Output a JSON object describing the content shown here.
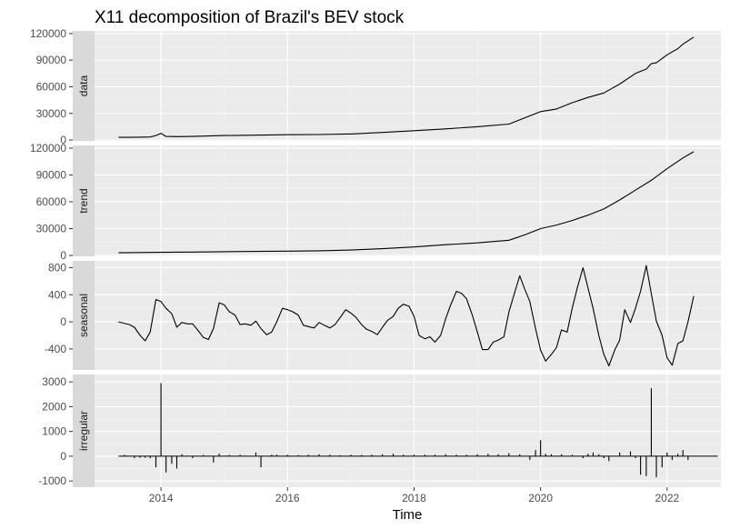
{
  "chart_data": {
    "type": "line",
    "title": "X11 decomposition of Brazil's BEV stock",
    "xlabel": "Time",
    "xlim": [
      2012.95,
      2022.85
    ],
    "x_ticks": [
      2014,
      2016,
      2018,
      2020,
      2022
    ],
    "x_tick_labels": [
      "2014",
      "2016",
      "2018",
      "2020",
      "2022"
    ],
    "grid": true,
    "panel_background": "#ebebeb",
    "strip_background": "#d9d9d9",
    "line_color": "#000000",
    "series": [
      {
        "name": "data",
        "type": "line",
        "ylim": [
          -1000,
          123000
        ],
        "y_ticks": [
          0,
          30000,
          60000,
          90000,
          120000
        ],
        "y_tick_labels": [
          "0",
          "30000",
          "60000",
          "90000",
          "120000"
        ],
        "x": [
          2013.33,
          2013.5,
          2013.67,
          2013.83,
          2013.92,
          2014.0,
          2014.08,
          2014.25,
          2014.5,
          2015.0,
          2015.5,
          2016.0,
          2016.5,
          2017.0,
          2017.5,
          2018.0,
          2018.5,
          2019.0,
          2019.5,
          2019.75,
          2020.0,
          2020.25,
          2020.5,
          2020.75,
          2021.0,
          2021.25,
          2021.5,
          2021.67,
          2021.75,
          2021.83,
          2022.0,
          2022.17,
          2022.25,
          2022.42
        ],
        "y": [
          3000,
          3000,
          3200,
          3400,
          5000,
          7500,
          4000,
          3800,
          4000,
          5000,
          5500,
          6000,
          6200,
          6800,
          8500,
          10500,
          12500,
          15000,
          18000,
          25000,
          32000,
          35000,
          42000,
          48000,
          53000,
          63000,
          75000,
          80000,
          86000,
          87000,
          96000,
          103000,
          108000,
          116000
        ]
      },
      {
        "name": "trend",
        "type": "line",
        "ylim": [
          -1000,
          123000
        ],
        "y_ticks": [
          0,
          30000,
          60000,
          90000,
          120000
        ],
        "y_tick_labels": [
          "0",
          "30000",
          "60000",
          "90000",
          "120000"
        ],
        "x": [
          2013.33,
          2014.0,
          2014.5,
          2015.0,
          2015.5,
          2016.0,
          2016.5,
          2017.0,
          2017.5,
          2018.0,
          2018.5,
          2019.0,
          2019.5,
          2019.75,
          2020.0,
          2020.25,
          2020.5,
          2020.75,
          2021.0,
          2021.25,
          2021.5,
          2021.75,
          2022.0,
          2022.25,
          2022.42
        ],
        "y": [
          3000,
          3500,
          3800,
          4200,
          4500,
          4800,
          5200,
          6000,
          7500,
          9500,
          12000,
          14000,
          17000,
          23000,
          30000,
          34000,
          39000,
          45000,
          52000,
          62000,
          73000,
          84000,
          97000,
          109000,
          116000
        ]
      },
      {
        "name": "seasonal",
        "type": "line",
        "ylim": [
          -710,
          900
        ],
        "y_ticks": [
          -400,
          0,
          400,
          800
        ],
        "y_tick_labels": [
          "-400",
          "0",
          "400",
          "800"
        ],
        "x": [
          2013.33,
          2013.5,
          2013.58,
          2013.67,
          2013.75,
          2013.83,
          2013.92,
          2014.0,
          2014.08,
          2014.17,
          2014.25,
          2014.33,
          2014.42,
          2014.5,
          2014.58,
          2014.67,
          2014.75,
          2014.83,
          2014.92,
          2015.0,
          2015.08,
          2015.17,
          2015.25,
          2015.33,
          2015.42,
          2015.5,
          2015.58,
          2015.67,
          2015.75,
          2015.83,
          2015.92,
          2016.0,
          2016.08,
          2016.17,
          2016.25,
          2016.33,
          2016.42,
          2016.5,
          2016.58,
          2016.67,
          2016.75,
          2016.83,
          2016.92,
          2017.0,
          2017.08,
          2017.17,
          2017.25,
          2017.33,
          2017.42,
          2017.5,
          2017.58,
          2017.67,
          2017.75,
          2017.83,
          2017.92,
          2018.0,
          2018.08,
          2018.17,
          2018.25,
          2018.33,
          2018.42,
          2018.5,
          2018.58,
          2018.67,
          2018.75,
          2018.83,
          2018.92,
          2019.0,
          2019.08,
          2019.17,
          2019.25,
          2019.33,
          2019.42,
          2019.5,
          2019.58,
          2019.67,
          2019.75,
          2019.83,
          2019.92,
          2020.0,
          2020.08,
          2020.17,
          2020.25,
          2020.33,
          2020.42,
          2020.5,
          2020.58,
          2020.67,
          2020.75,
          2020.83,
          2020.92,
          2021.0,
          2021.08,
          2021.17,
          2021.25,
          2021.33,
          2021.42,
          2021.5,
          2021.58,
          2021.67,
          2021.75,
          2021.83,
          2021.92,
          2022.0,
          2022.08,
          2022.17,
          2022.25,
          2022.33,
          2022.42
        ],
        "y": [
          0,
          -40,
          -80,
          -200,
          -280,
          -150,
          330,
          300,
          200,
          120,
          -80,
          -10,
          -30,
          -30,
          -120,
          -230,
          -260,
          -100,
          280,
          250,
          150,
          100,
          -40,
          -30,
          -50,
          10,
          -100,
          -190,
          -150,
          0,
          200,
          180,
          150,
          100,
          -50,
          -70,
          -90,
          -10,
          -50,
          -90,
          -40,
          60,
          180,
          130,
          70,
          -40,
          -110,
          -140,
          -190,
          -80,
          20,
          80,
          200,
          260,
          230,
          80,
          -200,
          -250,
          -220,
          -300,
          -200,
          50,
          250,
          450,
          420,
          340,
          100,
          -150,
          -410,
          -410,
          -300,
          -270,
          -220,
          150,
          400,
          680,
          480,
          300,
          -100,
          -420,
          -580,
          -480,
          -380,
          -120,
          -150,
          200,
          500,
          800,
          500,
          200,
          -200,
          -480,
          -650,
          -420,
          -270,
          180,
          -10,
          200,
          450,
          830,
          420,
          10,
          -200,
          -530,
          -640,
          -320,
          -280,
          0,
          380
        ]
      },
      {
        "name": "irregular",
        "type": "bar",
        "ylim": [
          -1250,
          3300
        ],
        "y_ticks": [
          -1000,
          0,
          1000,
          2000,
          3000
        ],
        "y_tick_labels": [
          "-1000",
          "0",
          "1000",
          "2000",
          "3000"
        ],
        "x": [
          2013.42,
          2013.58,
          2013.67,
          2013.75,
          2013.83,
          2013.92,
          2014.0,
          2014.08,
          2014.17,
          2014.25,
          2014.33,
          2014.5,
          2014.67,
          2014.83,
          2014.92,
          2015.08,
          2015.25,
          2015.5,
          2015.58,
          2015.75,
          2015.83,
          2016.0,
          2016.17,
          2016.33,
          2016.5,
          2016.67,
          2016.83,
          2017.0,
          2017.17,
          2017.33,
          2017.5,
          2017.67,
          2017.83,
          2018.0,
          2018.17,
          2018.33,
          2018.5,
          2018.67,
          2018.83,
          2019.0,
          2019.17,
          2019.33,
          2019.5,
          2019.67,
          2019.83,
          2019.92,
          2020.0,
          2020.08,
          2020.17,
          2020.33,
          2020.5,
          2020.67,
          2020.75,
          2020.83,
          2020.92,
          2021.0,
          2021.08,
          2021.25,
          2021.42,
          2021.5,
          2021.58,
          2021.67,
          2021.75,
          2021.83,
          2021.92,
          2022.0,
          2022.08,
          2022.17,
          2022.25,
          2022.33
        ],
        "y": [
          50,
          -80,
          -60,
          -60,
          -80,
          -450,
          2950,
          -650,
          -300,
          -500,
          80,
          -80,
          50,
          -250,
          100,
          50,
          60,
          150,
          -450,
          60,
          60,
          60,
          50,
          60,
          80,
          60,
          40,
          60,
          50,
          60,
          80,
          100,
          60,
          60,
          60,
          60,
          80,
          60,
          60,
          80,
          100,
          80,
          120,
          80,
          -150,
          250,
          650,
          100,
          80,
          80,
          60,
          -80,
          100,
          150,
          80,
          -80,
          -200,
          150,
          200,
          -80,
          -750,
          -800,
          2750,
          -850,
          -450,
          150,
          -150,
          100,
          250,
          -150
        ]
      }
    ]
  }
}
